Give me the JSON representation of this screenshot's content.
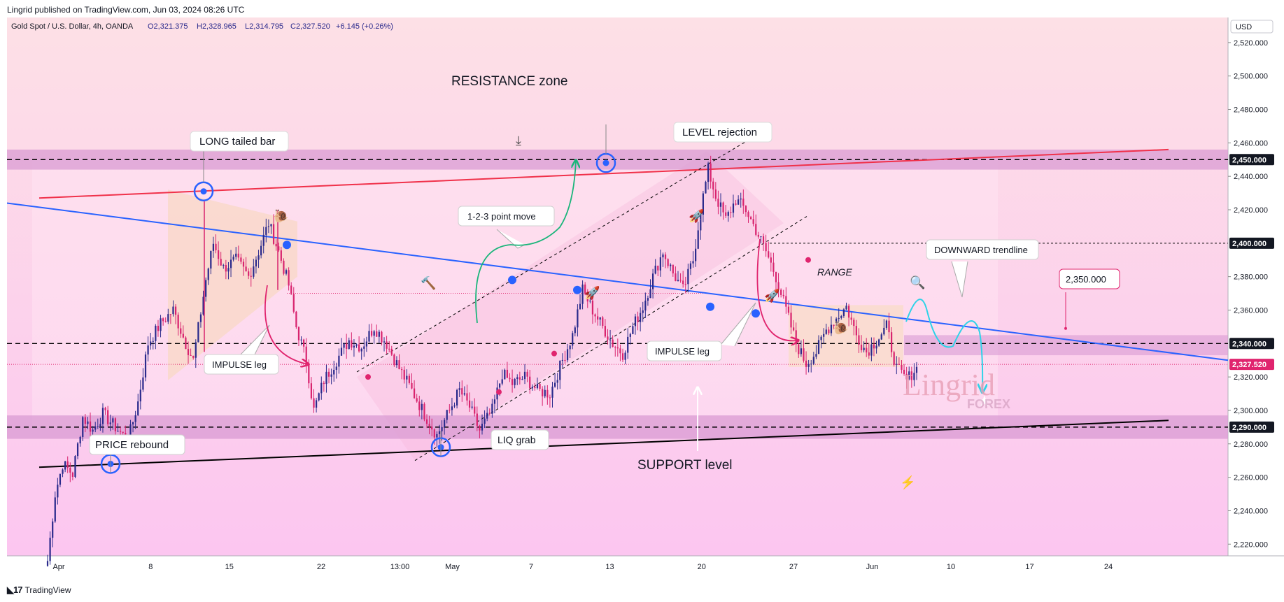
{
  "header": {
    "published": "Lingrid published on TradingView.com, Jun 03, 2024 08:26 UTC",
    "symbol": "Gold Spot / U.S. Dollar, 4h, OANDA",
    "ohlc": {
      "o": "O2,321.375",
      "h": "H2,328.965",
      "l": "L2,314.795",
      "c": "C2,327.520",
      "chg": "+6.145 (+0.26%)"
    }
  },
  "footer": {
    "brand": "TradingView"
  },
  "watermark": {
    "main": "Lingrid",
    "sub": "FOREX"
  },
  "colors": {
    "bg_top": "#fde0e8",
    "bg_bottom": "#fdc8ee",
    "up": "#2a2a8c",
    "down": "#d8236e",
    "zone": "#d99bd3",
    "trend_red": "#f0314a",
    "trend_blue": "#2962ff",
    "support": "#000000"
  },
  "chart_data": {
    "type": "candlestick",
    "title": "Gold Spot / U.S. Dollar, 4h, OANDA",
    "currency": "USD",
    "ylim": [
      2213,
      2535
    ],
    "y_ticks": [
      "2,520.000",
      "2,500.000",
      "2,480.000",
      "2,460.000",
      "2,440.000",
      "2,420.000",
      "2,380.000",
      "2,360.000",
      "2,320.000",
      "2,300.000",
      "2,280.000",
      "2,260.000",
      "2,240.000",
      "2,220.000"
    ],
    "price_tags": [
      {
        "label": "2,450.000",
        "value": 2450,
        "style": "dark"
      },
      {
        "label": "2,400.000",
        "value": 2400,
        "style": "dark"
      },
      {
        "label": "2,340.000",
        "value": 2340,
        "style": "dark"
      },
      {
        "label": "2,327.520",
        "value": 2327.52,
        "style": "last"
      },
      {
        "label": "2,290.000",
        "value": 2290,
        "style": "dark"
      }
    ],
    "x_ticks": [
      "Apr",
      "8",
      "15",
      "22",
      "13:00",
      "May",
      "7",
      "13",
      "20",
      "27",
      "Jun",
      "10",
      "17",
      "24"
    ],
    "resistance_zone": [
      2444,
      2456
    ],
    "support_zone": [
      2283,
      2297
    ],
    "target_zone": [
      2333,
      2345
    ],
    "levels": [
      2450,
      2400,
      2340,
      2290
    ],
    "series_pivots": [
      [
        0,
        2210
      ],
      [
        3,
        2250
      ],
      [
        6,
        2268
      ],
      [
        10,
        2262
      ],
      [
        14,
        2296
      ],
      [
        18,
        2288
      ],
      [
        22,
        2298
      ],
      [
        27,
        2290
      ],
      [
        32,
        2282
      ],
      [
        36,
        2305
      ],
      [
        40,
        2340
      ],
      [
        45,
        2352
      ],
      [
        50,
        2360
      ],
      [
        55,
        2340
      ],
      [
        58,
        2330
      ],
      [
        63,
        2378
      ],
      [
        66,
        2400
      ],
      [
        70,
        2385
      ],
      [
        75,
        2390
      ],
      [
        80,
        2380
      ],
      [
        84,
        2395
      ],
      [
        88,
        2412
      ],
      [
        92,
        2395
      ],
      [
        96,
        2375
      ],
      [
        99,
        2350
      ],
      [
        103,
        2330
      ],
      [
        106,
        2300
      ],
      [
        110,
        2318
      ],
      [
        115,
        2330
      ],
      [
        120,
        2342
      ],
      [
        125,
        2338
      ],
      [
        130,
        2350
      ],
      [
        135,
        2340
      ],
      [
        140,
        2325
      ],
      [
        145,
        2312
      ],
      [
        150,
        2298
      ],
      [
        155,
        2285
      ],
      [
        160,
        2300
      ],
      [
        164,
        2312
      ],
      [
        168,
        2302
      ],
      [
        172,
        2288
      ],
      [
        177,
        2300
      ],
      [
        181,
        2322
      ],
      [
        185,
        2316
      ],
      [
        190,
        2320
      ],
      [
        195,
        2312
      ],
      [
        200,
        2310
      ],
      [
        205,
        2330
      ],
      [
        209,
        2345
      ],
      [
        213,
        2372
      ],
      [
        217,
        2360
      ],
      [
        221,
        2350
      ],
      [
        225,
        2340
      ],
      [
        229,
        2334
      ],
      [
        233,
        2350
      ],
      [
        237,
        2362
      ],
      [
        241,
        2380
      ],
      [
        245,
        2395
      ],
      [
        249,
        2382
      ],
      [
        253,
        2372
      ],
      [
        257,
        2390
      ],
      [
        260,
        2420
      ],
      [
        263,
        2444
      ],
      [
        266,
        2428
      ],
      [
        270,
        2414
      ],
      [
        274,
        2426
      ],
      [
        278,
        2420
      ],
      [
        282,
        2408
      ],
      [
        286,
        2395
      ],
      [
        290,
        2380
      ],
      [
        294,
        2360
      ],
      [
        298,
        2340
      ],
      [
        302,
        2328
      ],
      [
        306,
        2335
      ],
      [
        310,
        2348
      ],
      [
        314,
        2355
      ],
      [
        318,
        2362
      ],
      [
        322,
        2345
      ],
      [
        326,
        2335
      ],
      [
        330,
        2342
      ],
      [
        334,
        2350
      ],
      [
        338,
        2325
      ],
      [
        342,
        2318
      ],
      [
        346,
        2326
      ]
    ],
    "candle_count": 347,
    "x_axis_days": 88,
    "annotations": [
      {
        "id": "resistance",
        "text": "RESISTANCE zone",
        "boxed": false
      },
      {
        "id": "long_tailed",
        "text": "LONG tailed bar",
        "boxed": true
      },
      {
        "id": "level_rejection",
        "text": "LEVEL rejection",
        "boxed": true
      },
      {
        "id": "point_move",
        "text": "1-2-3 point move",
        "boxed": true
      },
      {
        "id": "downward",
        "text": "DOWNWARD trendline",
        "boxed": true
      },
      {
        "id": "target",
        "text": "2,350.000",
        "boxed": true
      },
      {
        "id": "range",
        "text": "RANGE",
        "boxed": false
      },
      {
        "id": "impulse1",
        "text": "IMPULSE leg",
        "boxed": true
      },
      {
        "id": "impulse2",
        "text": "IMPULSE leg",
        "boxed": true
      },
      {
        "id": "price_rebound",
        "text": "PRICE rebound",
        "boxed": true
      },
      {
        "id": "liq_grab",
        "text": "LIQ grab",
        "boxed": true
      },
      {
        "id": "support",
        "text": "SUPPORT level",
        "boxed": false
      }
    ]
  }
}
